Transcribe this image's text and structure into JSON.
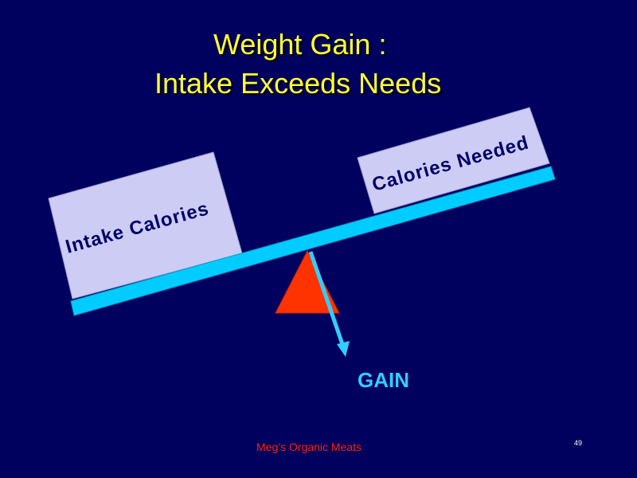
{
  "slide": {
    "title_line1": "Weight  Gain :",
    "title_line2": "Intake  Exceeds  Needs",
    "left_box_label": "Intake  Calories",
    "right_box_label": "Calories  Needed",
    "result_label": "GAIN",
    "footer": "Meg’s  Organic  Meats",
    "page_number": "49"
  },
  "colors": {
    "background": "#00005f",
    "title": "#ffff33",
    "box_fill": "#ccccf5",
    "beam": "#00ccff",
    "fulcrum": "#ff3300",
    "arrow": "#33ccff",
    "footer": "#ff2200"
  }
}
